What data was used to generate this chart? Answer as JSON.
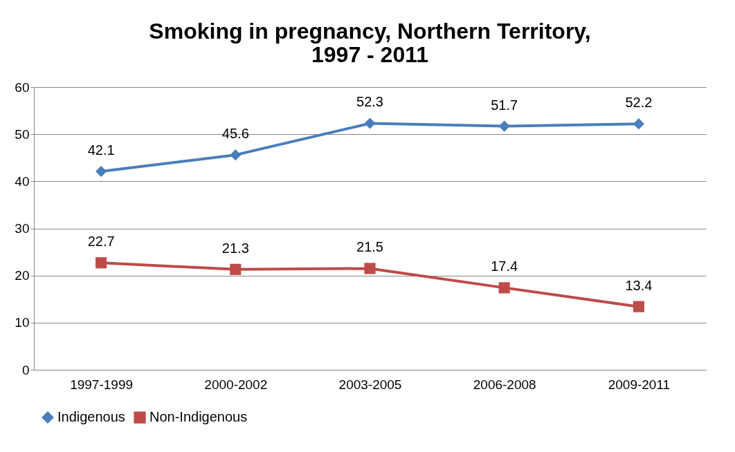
{
  "chart_data": {
    "type": "line",
    "title": "Smoking in pregnancy, Northern Territory, 1997 - 2011",
    "categories": [
      "1997-1999",
      "2000-2002",
      "2003-2005",
      "2006-2008",
      "2009-2011"
    ],
    "series": [
      {
        "name": "Indigenous",
        "color": "#4a7ebb",
        "marker": "diamond",
        "values": [
          42.1,
          45.6,
          52.3,
          51.7,
          52.2
        ]
      },
      {
        "name": "Non-Indigenous",
        "color": "#be4b48",
        "marker": "square",
        "values": [
          22.7,
          21.3,
          21.5,
          17.4,
          13.4
        ]
      }
    ],
    "ylim": [
      0,
      60
    ],
    "yticks": [
      0,
      10,
      20,
      30,
      40,
      50,
      60
    ],
    "grid": "y",
    "legend": "bottom",
    "data_labels": true,
    "line_style": "solid"
  }
}
